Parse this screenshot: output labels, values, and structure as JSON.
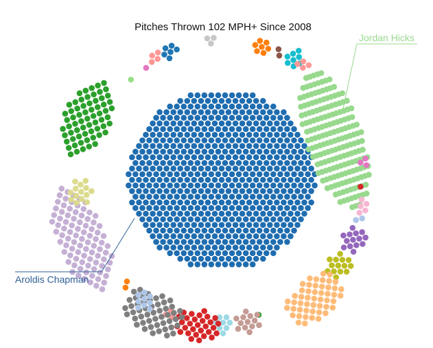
{
  "chart_data": {
    "type": "bubble-cluster",
    "title": "Pitches Thrown 102 MPH+ Since 2008",
    "annotations": [
      {
        "label": "Jordan Hicks",
        "color": "#98d98e"
      },
      {
        "label": "Aroldis Chapman",
        "color": "#2f5f96"
      }
    ],
    "series": [
      {
        "name": "Aroldis Chapman",
        "count": 680,
        "color": "#1f6db0",
        "featured": true
      },
      {
        "name": "Jordan Hicks",
        "count": 190,
        "color": "#98d98e",
        "featured": true
      },
      {
        "count": 4,
        "color": "#ff9896"
      },
      {
        "count": 3,
        "color": "#c7c7c7"
      },
      {
        "count": 7,
        "color": "#ff7f0e"
      },
      {
        "count": 2,
        "color": "#8c564b"
      },
      {
        "count": 8,
        "color": "#17becf"
      },
      {
        "count": 4,
        "color": "#ff9896"
      },
      {
        "count": 3,
        "color": "#e377c2"
      },
      {
        "count": 1,
        "color": "#d62728"
      },
      {
        "count": 5,
        "color": "#f7b6d2"
      },
      {
        "count": 2,
        "color": "#aec7e8"
      },
      {
        "count": 14,
        "color": "#9467bd"
      },
      {
        "count": 14,
        "color": "#bcbd22"
      },
      {
        "count": 50,
        "color": "#ffbb78"
      },
      {
        "count": 1,
        "color": "#2ca02c"
      },
      {
        "count": 13,
        "color": "#c49c94"
      },
      {
        "count": 8,
        "color": "#9edae5"
      },
      {
        "count": 30,
        "color": "#d62728"
      },
      {
        "count": 3,
        "color": "#ff9896"
      },
      {
        "count": 50,
        "color": "#7f7f7f"
      },
      {
        "count": 9,
        "color": "#aec7e8"
      },
      {
        "count": 2,
        "color": "#ff7f0e"
      },
      {
        "count": 90,
        "color": "#c5b0d5"
      },
      {
        "count": 14,
        "color": "#dbdb8d"
      },
      {
        "count": 65,
        "color": "#2ca02c"
      },
      {
        "count": 1,
        "color": "#98df8a"
      },
      {
        "count": 1,
        "color": "#e377c2"
      },
      {
        "count": 6,
        "color": "#1f77b4"
      }
    ]
  }
}
